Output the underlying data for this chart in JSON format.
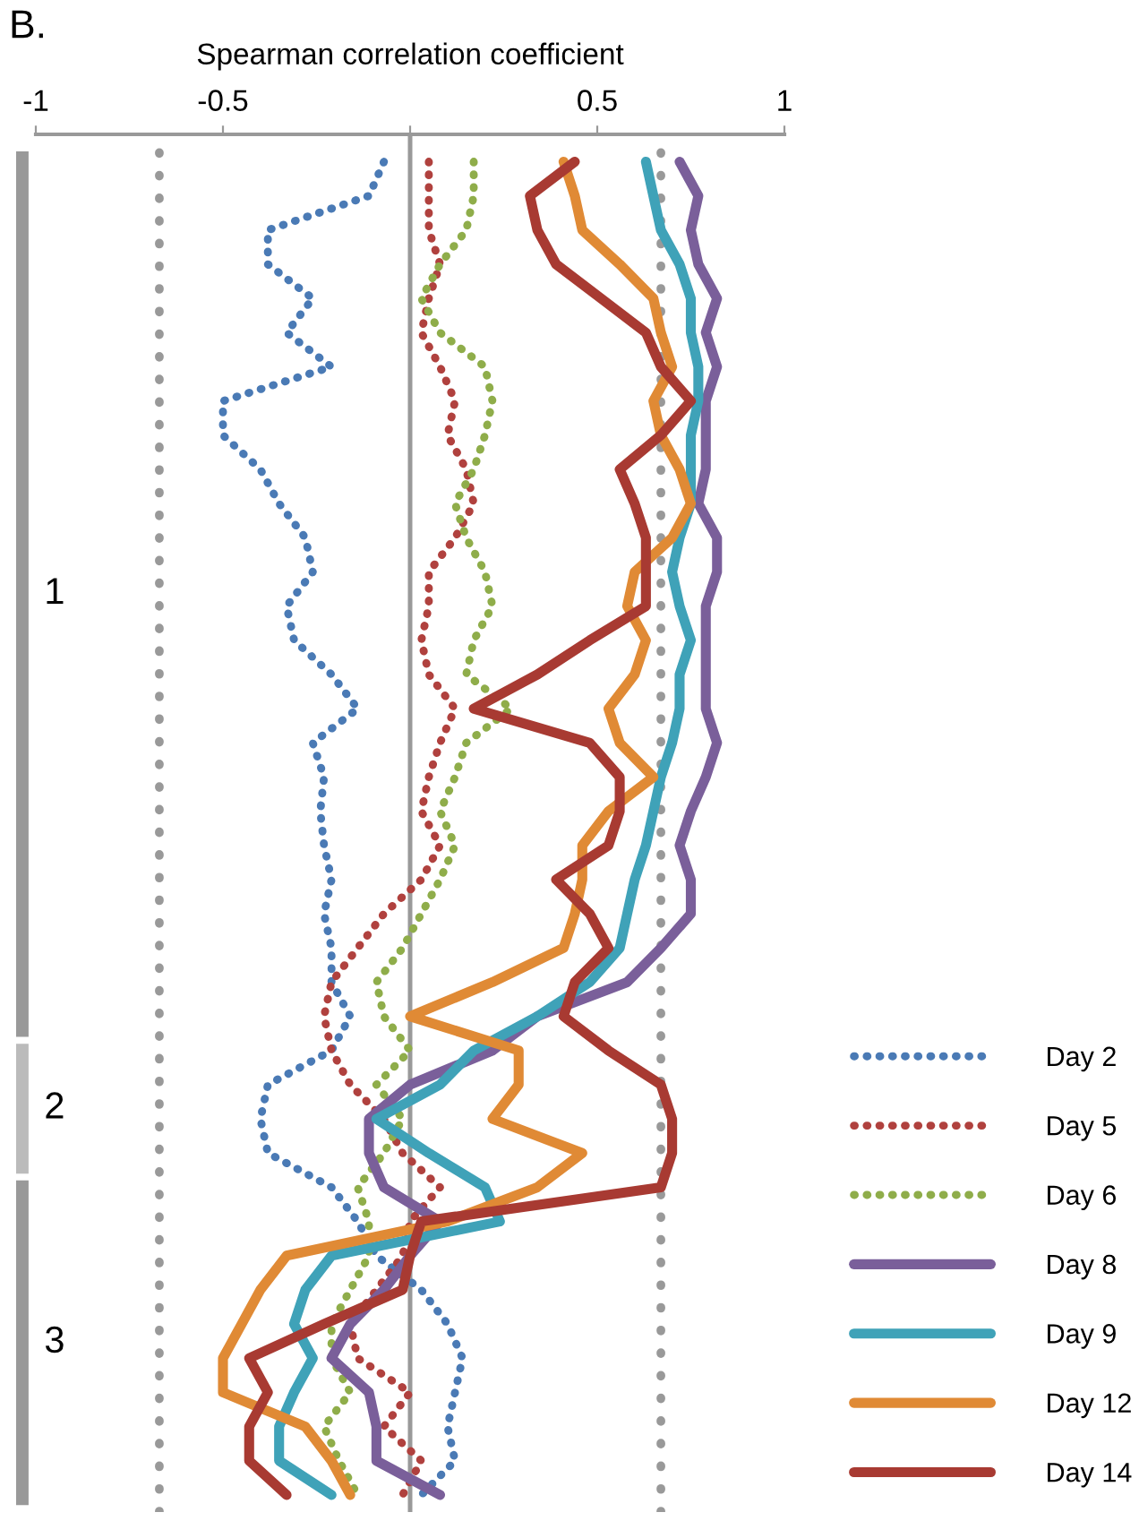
{
  "chart_data": {
    "type": "line",
    "orientation": "horizontal",
    "title": "B.",
    "xlabel": "Spearman correlation coefficient",
    "categories": [
      null,
      null,
      null,
      null,
      null,
      null,
      null,
      null,
      null,
      null,
      null,
      null,
      null,
      null,
      null,
      null,
      null,
      null,
      null,
      null,
      null,
      null,
      null,
      null,
      null,
      null,
      null,
      null,
      null,
      null,
      null,
      null,
      null,
      null,
      null,
      null,
      null,
      null,
      null,
      null
    ],
    "series": [
      {
        "name": "Day 2",
        "color": "#4a7ab5",
        "line_style": "dotted",
        "values": [
          -0.07,
          -0.11,
          -0.38,
          -0.38,
          -0.26,
          -0.33,
          -0.21,
          -0.5,
          -0.5,
          -0.4,
          -0.35,
          -0.28,
          -0.26,
          -0.33,
          -0.31,
          -0.21,
          -0.14,
          -0.26,
          -0.23,
          -0.24,
          -0.23,
          -0.21,
          -0.23,
          -0.21,
          -0.21,
          -0.16,
          -0.21,
          -0.38,
          -0.4,
          -0.38,
          -0.21,
          -0.14,
          -0.09,
          0.03,
          0.1,
          0.14,
          0.12,
          0.1,
          0.12,
          0.03
        ]
      },
      {
        "name": "Day 5",
        "color": "#b0413e",
        "line_style": "dotted",
        "values": [
          0.05,
          0.05,
          0.05,
          0.08,
          0.05,
          0.03,
          0.08,
          0.12,
          0.1,
          0.15,
          0.17,
          0.12,
          0.05,
          0.05,
          0.03,
          0.05,
          0.12,
          0.08,
          0.05,
          0.03,
          0.08,
          0.03,
          -0.07,
          -0.14,
          -0.21,
          -0.23,
          -0.21,
          -0.16,
          -0.07,
          -0.02,
          0.08,
          0.0,
          -0.02,
          -0.09,
          -0.16,
          -0.14,
          0.0,
          -0.07,
          0.03,
          -0.02
        ]
      },
      {
        "name": "Day 6",
        "color": "#8fad4a",
        "line_style": "dotted",
        "values": [
          0.17,
          0.17,
          0.15,
          0.08,
          0.03,
          0.08,
          0.2,
          0.22,
          0.2,
          0.17,
          0.12,
          0.15,
          0.2,
          0.22,
          0.17,
          0.15,
          0.27,
          0.15,
          0.12,
          0.08,
          0.12,
          0.08,
          0.03,
          -0.02,
          -0.09,
          -0.07,
          0.0,
          -0.09,
          -0.02,
          -0.07,
          -0.14,
          -0.11,
          -0.11,
          -0.16,
          -0.21,
          -0.21,
          -0.16,
          -0.23,
          -0.19,
          -0.14
        ]
      },
      {
        "name": "Day 8",
        "color": "#7a5f9a",
        "line_style": "solid",
        "values": [
          0.72,
          0.77,
          0.75,
          0.77,
          0.82,
          0.79,
          0.82,
          0.79,
          0.79,
          0.79,
          0.77,
          0.82,
          0.82,
          0.79,
          0.79,
          0.79,
          0.79,
          0.82,
          0.79,
          0.75,
          0.72,
          0.75,
          0.75,
          0.67,
          0.58,
          0.34,
          0.22,
          0.0,
          -0.11,
          -0.11,
          -0.07,
          0.08,
          0.0,
          -0.07,
          -0.16,
          -0.21,
          -0.11,
          -0.09,
          -0.09,
          0.08
        ]
      },
      {
        "name": "Day 9",
        "color": "#3fa2b8",
        "line_style": "solid",
        "values": [
          0.63,
          0.65,
          0.67,
          0.72,
          0.75,
          0.75,
          0.77,
          0.77,
          0.75,
          0.75,
          0.75,
          0.72,
          0.7,
          0.72,
          0.75,
          0.72,
          0.72,
          0.7,
          0.67,
          0.65,
          0.63,
          0.6,
          0.58,
          0.56,
          0.48,
          0.34,
          0.17,
          0.08,
          -0.09,
          0.05,
          0.2,
          0.24,
          -0.21,
          -0.28,
          -0.31,
          -0.26,
          -0.31,
          -0.35,
          -0.35,
          -0.21
        ]
      },
      {
        "name": "Day 12",
        "color": "#e08a35",
        "line_style": "solid",
        "values": [
          0.41,
          0.44,
          0.46,
          0.56,
          0.65,
          0.67,
          0.7,
          0.65,
          0.67,
          0.72,
          0.75,
          0.7,
          0.6,
          0.58,
          0.63,
          0.6,
          0.53,
          0.56,
          0.65,
          0.53,
          0.46,
          0.46,
          0.44,
          0.41,
          0.22,
          0.0,
          0.29,
          0.29,
          0.22,
          0.46,
          0.34,
          0.1,
          -0.33,
          -0.4,
          -0.45,
          -0.5,
          -0.5,
          -0.28,
          -0.21,
          -0.16
        ]
      },
      {
        "name": "Day 14",
        "color": "#a83a32",
        "line_style": "solid",
        "values": [
          0.44,
          0.32,
          0.34,
          0.39,
          0.51,
          0.63,
          0.67,
          0.75,
          0.67,
          0.56,
          0.6,
          0.63,
          0.63,
          0.63,
          0.48,
          0.34,
          0.17,
          0.48,
          0.56,
          0.56,
          0.53,
          0.39,
          0.48,
          0.53,
          0.44,
          0.41,
          0.53,
          0.67,
          0.7,
          0.7,
          0.67,
          0.03,
          0.0,
          -0.02,
          -0.23,
          -0.43,
          -0.38,
          -0.43,
          -0.43,
          -0.33
        ]
      }
    ],
    "xlim": [
      -1,
      1
    ],
    "xticks": [
      -1,
      -0.5,
      {
        "value": 0,
        "label": null
      },
      0.5,
      1
    ],
    "ref_lines": [
      {
        "axis": "x",
        "value": -0.67,
        "color": "#999999",
        "line_style": "dotted"
      },
      {
        "axis": "x",
        "value": 0,
        "color": "#999999",
        "line_style": "solid"
      },
      {
        "axis": "x",
        "value": 0.67,
        "color": "#999999",
        "line_style": "dotted"
      }
    ],
    "annotations": [
      "1",
      "2",
      "3"
    ],
    "tick_labels": "x",
    "grid": false,
    "legend": "bottom right"
  }
}
